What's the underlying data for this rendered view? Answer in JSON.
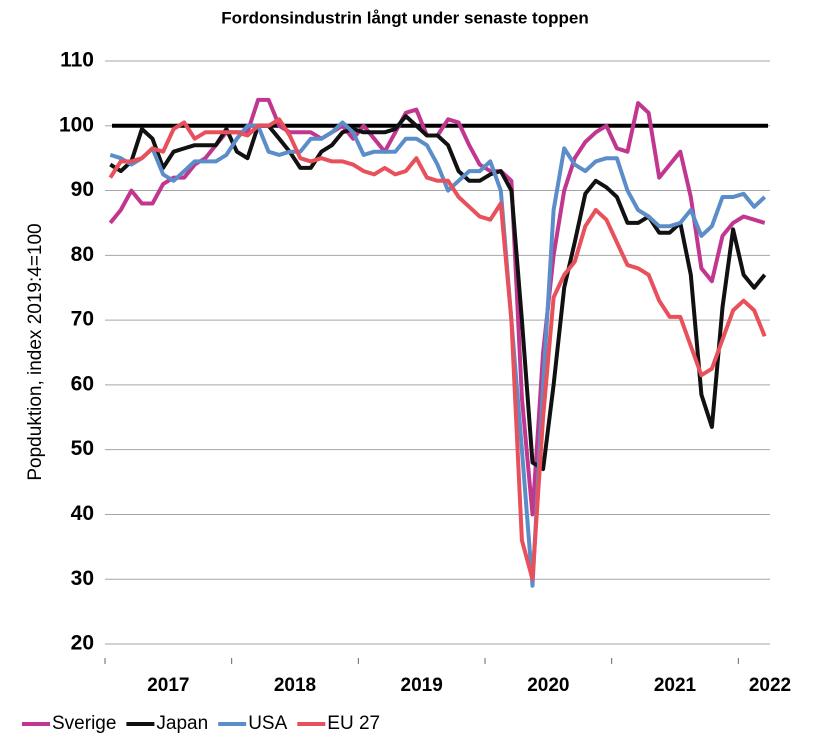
{
  "chart_data": {
    "type": "line",
    "title": "Fordonsindustrin långt under senaste toppen",
    "y_label": "Popduktion, index 2019:4=100",
    "categories": [
      null,
      null,
      null,
      null,
      null,
      "2017",
      null,
      null,
      null,
      null,
      null,
      null,
      null,
      null,
      null,
      null,
      null,
      "2018",
      null,
      null,
      null,
      null,
      null,
      null,
      null,
      null,
      null,
      null,
      null,
      "2019",
      null,
      null,
      null,
      null,
      null,
      null,
      null,
      null,
      null,
      null,
      null,
      "2020",
      null,
      null,
      null,
      null,
      null,
      null,
      null,
      null,
      null,
      null,
      null,
      "2021",
      null,
      null,
      null,
      null,
      null,
      null,
      null,
      null,
      "2022"
    ],
    "ylim": [
      20,
      110
    ],
    "yticks": [
      20,
      30,
      40,
      50,
      60,
      70,
      80,
      90,
      100,
      110
    ],
    "grid": true,
    "reference_line": 100,
    "reference_color": "#000000",
    "legend": "bottom",
    "series": [
      {
        "name": "Sverige",
        "color": "#c1378f",
        "values": [
          85,
          87,
          90,
          88,
          88,
          91,
          92,
          92,
          94,
          95,
          97,
          99,
          99,
          99,
          104,
          104,
          100,
          99,
          99,
          99,
          98,
          99,
          100,
          98,
          100,
          98,
          96,
          99,
          102,
          102.5,
          98.5,
          98.5,
          101,
          100.5,
          97,
          94,
          93,
          93,
          91.5,
          58,
          40,
          65,
          80,
          90,
          95,
          97.5,
          99,
          100,
          96.5,
          96,
          103.5,
          102,
          92,
          94,
          96,
          89,
          78,
          76,
          83,
          85,
          86,
          85.5,
          85
        ]
      },
      {
        "name": "Japan",
        "color": "#111111",
        "values": [
          94,
          93,
          94.5,
          99.5,
          98,
          93.5,
          96,
          96.5,
          97,
          97,
          97,
          99.5,
          96,
          95,
          100,
          100,
          98,
          96,
          93.5,
          93.5,
          96,
          97,
          99,
          99.5,
          99,
          99,
          99,
          99.5,
          101.5,
          100,
          98.5,
          98.5,
          97,
          93,
          91.5,
          91.5,
          92.5,
          93,
          90,
          70,
          48,
          47,
          60,
          75,
          82,
          89.5,
          91.5,
          90.5,
          89,
          85,
          85,
          86,
          83.5,
          83.5,
          85,
          77,
          58.5,
          53.5,
          72,
          84,
          77,
          75,
          77
        ]
      },
      {
        "name": "USA",
        "color": "#5b8dc9",
        "values": [
          95.5,
          95,
          94,
          95,
          96.5,
          92.5,
          91.5,
          93,
          94.5,
          94.5,
          94.5,
          95.5,
          98,
          100,
          100,
          96,
          95.5,
          96,
          96,
          98,
          98,
          99,
          100.5,
          99,
          95.5,
          96,
          96,
          96,
          98,
          98,
          97,
          94,
          90,
          91.5,
          93,
          93,
          94.5,
          90,
          70,
          50,
          29,
          60,
          87,
          96.5,
          94,
          93,
          94.5,
          95,
          95,
          90,
          87,
          86,
          84.5,
          84.5,
          85,
          87,
          83,
          84.5,
          89,
          89,
          89.5,
          87.5,
          89
        ]
      },
      {
        "name": "EU 27",
        "color": "#e8505b",
        "values": [
          92,
          94.5,
          94.5,
          95,
          96.5,
          96,
          99.5,
          100.5,
          98,
          99,
          99,
          99,
          99,
          98.5,
          100,
          100,
          101,
          98.5,
          95,
          94.5,
          95,
          94.5,
          94.5,
          94,
          93,
          92.5,
          93.5,
          92.5,
          93,
          95,
          92,
          91.5,
          91.5,
          89,
          87.5,
          86,
          85.5,
          88,
          70,
          36,
          30,
          55,
          73.5,
          77,
          79,
          84.5,
          87,
          85.5,
          82,
          78.5,
          78,
          77,
          73,
          70.5,
          70.5,
          66,
          61.5,
          62.5,
          67,
          71.5,
          73,
          71.5,
          67.5
        ]
      }
    ]
  }
}
